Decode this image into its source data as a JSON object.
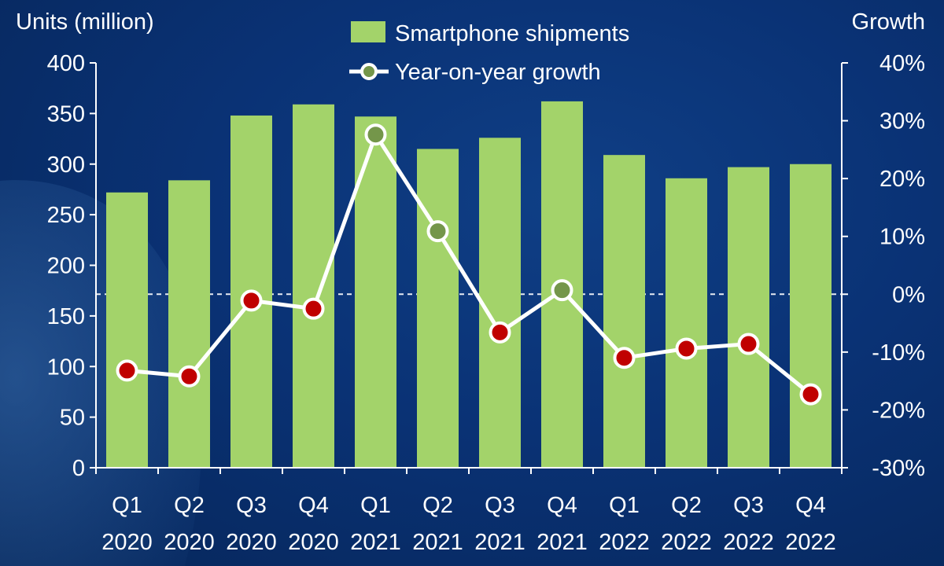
{
  "chart_data": {
    "type": "bar",
    "y_left_label": "Units (million)",
    "y_right_label": "Growth",
    "categories": [
      [
        "Q1",
        "2020"
      ],
      [
        "Q2",
        "2020"
      ],
      [
        "Q3",
        "2020"
      ],
      [
        "Q4",
        "2020"
      ],
      [
        "Q1",
        "2021"
      ],
      [
        "Q2",
        "2021"
      ],
      [
        "Q3",
        "2021"
      ],
      [
        "Q4",
        "2021"
      ],
      [
        "Q1",
        "2022"
      ],
      [
        "Q2",
        "2022"
      ],
      [
        "Q3",
        "2022"
      ],
      [
        "Q4",
        "2022"
      ]
    ],
    "series": [
      {
        "name": "Smartphone shipments",
        "type": "bar",
        "axis": "left",
        "color": "#a3d36a",
        "values": [
          272,
          284,
          348,
          359,
          347,
          315,
          326,
          362,
          309,
          286,
          297,
          300
        ]
      },
      {
        "name": "Year-on-year growth",
        "type": "line",
        "axis": "right",
        "line_color": "#ffffff",
        "marker_colors": {
          "positive": "#74964a",
          "negative": "#c00000"
        },
        "values": [
          -13.2,
          -14.2,
          -1.1,
          -2.5,
          27.6,
          10.9,
          -6.6,
          0.7,
          -11.0,
          -9.4,
          -8.6,
          -17.3
        ]
      }
    ],
    "y_left_ticks": [
      "0",
      "50",
      "100",
      "150",
      "200",
      "250",
      "300",
      "350",
      "400"
    ],
    "y_left_range": [
      0,
      400
    ],
    "y_right_ticks": [
      "-30%",
      "-20%",
      "-10%",
      "0%",
      "10%",
      "20%",
      "30%",
      "40%"
    ],
    "y_right_range": [
      -30,
      40
    ],
    "reference_line": {
      "axis": "right",
      "value": 0,
      "style": "dashed",
      "color": "#ffffff"
    },
    "legend_position": "top-center",
    "grid": false
  }
}
